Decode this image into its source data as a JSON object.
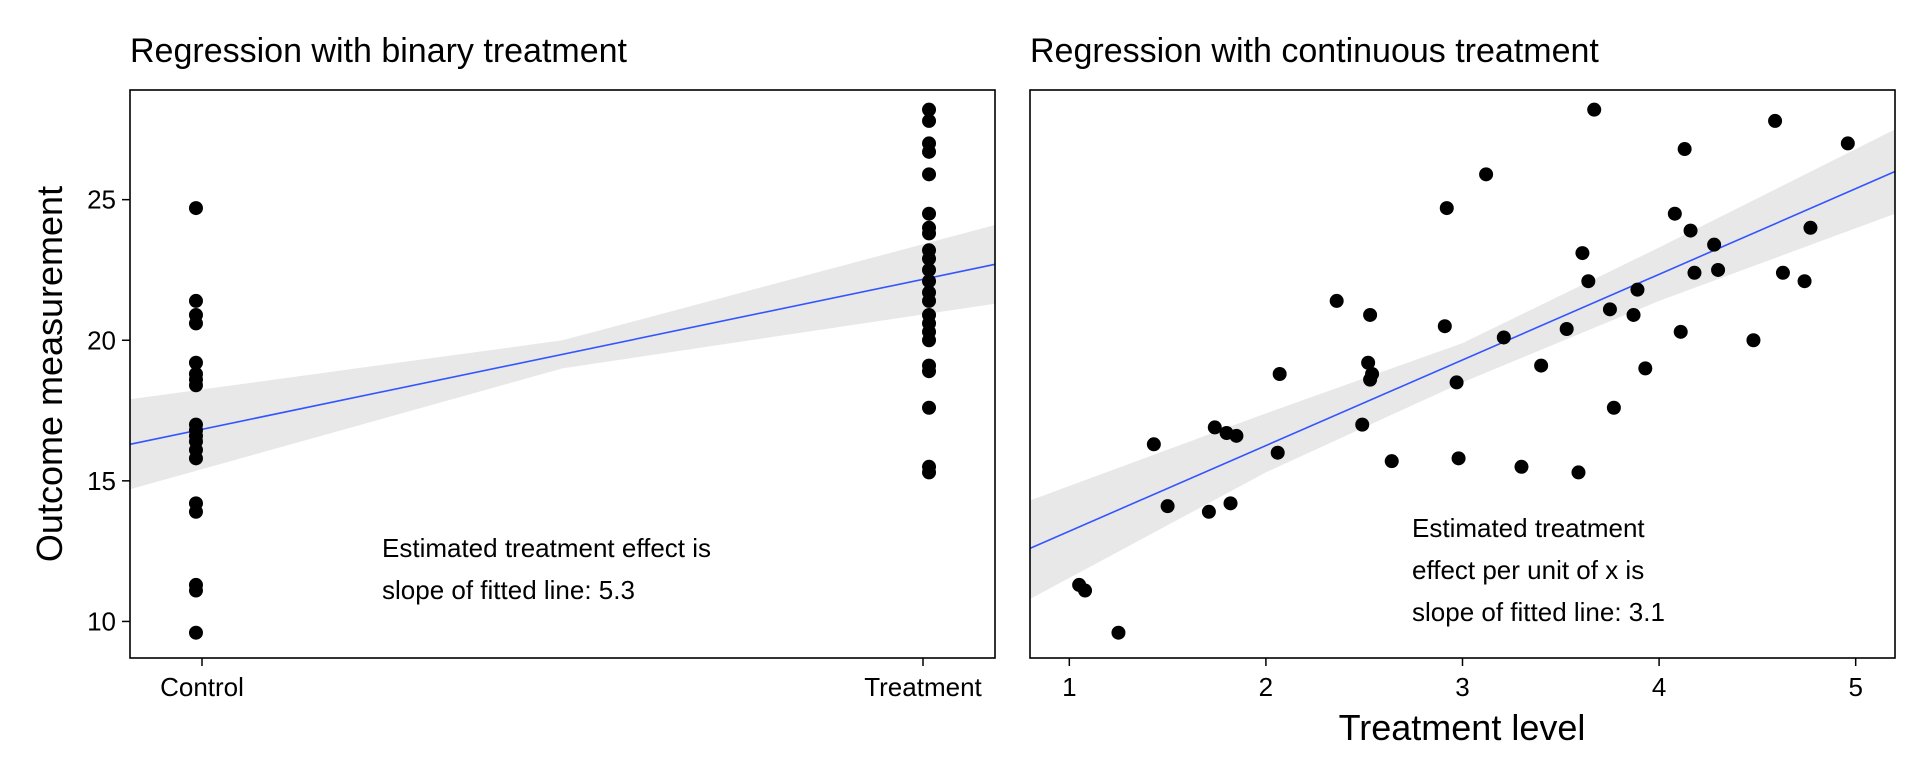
{
  "chart_data": [
    {
      "type": "scatter",
      "title": "Regression with binary treatment",
      "xlabel": "",
      "ylabel": "Outcome measurement",
      "x_categories": [
        "Control",
        "Treatment"
      ],
      "x_range": [
        -0.09,
        1.09
      ],
      "ylim": [
        8.7,
        28.9
      ],
      "y_ticks": [
        10,
        15,
        20,
        25
      ],
      "grid": false,
      "points": {
        "Control": [
          24.7,
          21.4,
          20.9,
          20.6,
          19.2,
          18.8,
          18.6,
          18.4,
          17.0,
          16.8,
          16.6,
          16.4,
          16.1,
          15.8,
          14.2,
          13.9,
          11.3,
          11.1,
          9.6
        ],
        "Treatment": [
          28.2,
          27.8,
          27.0,
          26.7,
          25.9,
          24.5,
          24.0,
          23.8,
          23.2,
          22.9,
          22.5,
          22.1,
          21.7,
          21.4,
          20.9,
          20.6,
          20.3,
          20.0,
          19.1,
          18.9,
          17.6,
          15.5,
          15.3
        ]
      },
      "fit": {
        "x": [
          -0.09,
          1.09
        ],
        "y": [
          16.3,
          22.7
        ]
      },
      "band": {
        "x": [
          -0.09,
          0.5,
          1.09
        ],
        "lower": [
          14.7,
          19.0,
          21.3
        ],
        "upper": [
          17.9,
          20.0,
          24.1
        ]
      },
      "annotation": [
        "Estimated treatment effect is",
        "slope of fitted line: 5.3"
      ],
      "colors": {
        "points": "#000000",
        "fit": "#3355ff",
        "band": "#e8e8e8"
      }
    },
    {
      "type": "scatter",
      "title": "Regression with continuous treatment",
      "xlabel": "Treatment level",
      "ylabel": "",
      "xlim": [
        0.8,
        5.2
      ],
      "x_ticks": [
        1,
        2,
        3,
        4,
        5
      ],
      "ylim": [
        8.7,
        28.9
      ],
      "grid": false,
      "points": {
        "x": [
          1.05,
          1.08,
          1.25,
          1.43,
          1.5,
          1.71,
          1.74,
          1.8,
          1.82,
          1.85,
          2.06,
          2.07,
          2.36,
          2.49,
          2.52,
          2.53,
          2.53,
          2.54,
          2.64,
          2.91,
          2.92,
          2.97,
          2.98,
          3.12,
          3.21,
          3.3,
          3.4,
          3.53,
          3.59,
          3.61,
          3.64,
          3.67,
          3.75,
          3.77,
          3.87,
          3.89,
          3.93,
          4.08,
          4.11,
          4.13,
          4.16,
          4.18,
          4.28,
          4.3,
          4.48,
          4.59,
          4.63,
          4.74,
          4.77,
          4.96
        ],
        "y": [
          11.3,
          11.1,
          9.6,
          16.3,
          14.1,
          13.9,
          16.9,
          16.7,
          14.2,
          16.6,
          16.0,
          18.8,
          21.4,
          17.0,
          19.2,
          18.6,
          20.9,
          18.8,
          15.7,
          20.5,
          24.7,
          18.5,
          15.8,
          25.9,
          20.1,
          15.5,
          19.1,
          20.4,
          15.3,
          23.1,
          22.1,
          28.2,
          21.1,
          17.6,
          20.9,
          21.8,
          19.0,
          24.5,
          20.3,
          26.8,
          23.9,
          22.4,
          23.4,
          22.5,
          20.0,
          27.8,
          22.4,
          22.1,
          24.0,
          27.0
        ]
      },
      "fit": {
        "x": [
          0.8,
          5.2
        ],
        "y": [
          12.6,
          26.0
        ]
      },
      "band": {
        "x": [
          0.8,
          2.0,
          3.0,
          4.0,
          5.2
        ],
        "lower": [
          10.8,
          15.3,
          18.5,
          21.4,
          24.5
        ],
        "upper": [
          14.3,
          17.4,
          19.9,
          23.3,
          27.5
        ]
      },
      "annotation": [
        "Estimated treatment",
        "effect per unit of x is",
        "slope of fitted line: 3.1"
      ],
      "colors": {
        "points": "#000000",
        "fit": "#3355ff",
        "band": "#e8e8e8"
      }
    }
  ]
}
